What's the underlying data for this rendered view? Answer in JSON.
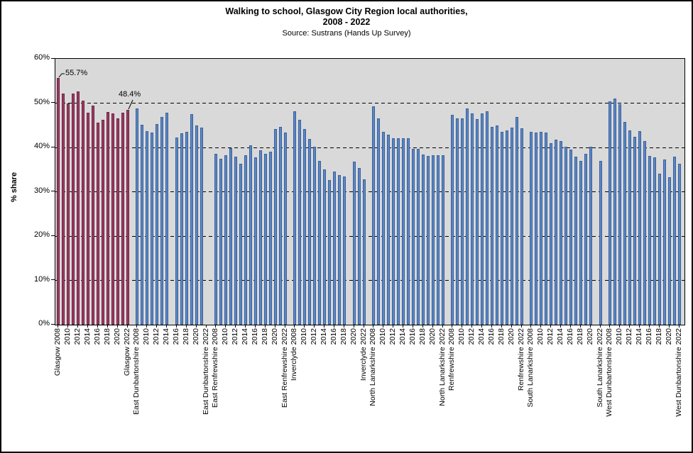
{
  "chart_data": {
    "type": "bar",
    "title": "Walking to school, Glasgow City Region local authorities,",
    "subtitle": "2008 - 2022",
    "source": "Source: Sustrans (Hands Up Survey)",
    "ylabel": "% share",
    "xlabel": "",
    "ylim": [
      0,
      60
    ],
    "yticks": [
      0,
      10,
      20,
      30,
      40,
      50,
      60
    ],
    "ytick_suffix": "%",
    "grid": "horizontal dashed black lines at 10%-50%",
    "legend_position": "none",
    "plot_background": "#D9D9D9",
    "years": [
      2008,
      2009,
      2010,
      2011,
      2012,
      2013,
      2014,
      2015,
      2016,
      2017,
      2018,
      2019,
      2020,
      2021,
      2022
    ],
    "labeled_years": [
      2008,
      2010,
      2012,
      2014,
      2016,
      2018,
      2020,
      2022
    ],
    "series": [
      {
        "name": "Glasgow",
        "highlight": true,
        "values": [
          55.7,
          52.2,
          49.9,
          52.1,
          52.7,
          50.6,
          47.8,
          49.5,
          45.6,
          46.3,
          48.0,
          47.6,
          46.6,
          47.8,
          48.4
        ]
      },
      {
        "name": "East Dunbartonshire",
        "highlight": false,
        "values": [
          48.8,
          45.1,
          43.6,
          43.3,
          45.3,
          46.8,
          47.9,
          null,
          42.3,
          43.2,
          43.5,
          47.5,
          45.0,
          44.5,
          null
        ]
      },
      {
        "name": "East Renfrewshire",
        "highlight": false,
        "values": [
          38.5,
          37.4,
          38.2,
          39.9,
          37.9,
          36.3,
          38.2,
          40.4,
          37.7,
          39.3,
          38.5,
          39.0,
          44.2,
          44.6,
          43.3
        ]
      },
      {
        "name": "Inverclyde",
        "highlight": false,
        "values": [
          48.2,
          46.2,
          44.1,
          41.9,
          40.2,
          37.0,
          35.0,
          32.6,
          34.5,
          33.7,
          33.4,
          null,
          36.8,
          35.3,
          32.8
        ]
      },
      {
        "name": "North Lanarkshire",
        "highlight": false,
        "values": [
          49.2,
          46.6,
          43.5,
          42.9,
          42.1,
          42.1,
          42.1,
          42.0,
          39.7,
          39.7,
          38.4,
          38.1,
          38.3,
          38.3,
          38.2
        ]
      },
      {
        "name": "Renfrewshire",
        "highlight": false,
        "values": [
          47.4,
          46.6,
          46.5,
          48.8,
          47.6,
          46.4,
          47.7,
          48.1,
          44.6,
          44.9,
          43.5,
          43.8,
          44.4,
          46.9,
          44.3
        ]
      },
      {
        "name": "South Lanarkshire",
        "highlight": false,
        "values": [
          43.5,
          43.4,
          43.5,
          43.3,
          40.9,
          41.7,
          41.4,
          40.1,
          39.5,
          37.9,
          36.9,
          38.5,
          40.2,
          null,
          37.0
        ]
      },
      {
        "name": "West Dunbartonshire",
        "highlight": false,
        "values": [
          50.4,
          51.0,
          49.8,
          45.7,
          43.9,
          42.4,
          43.7,
          41.4,
          38.0,
          37.7,
          34.1,
          37.2,
          33.3,
          37.9,
          36.3
        ]
      }
    ],
    "annotations": [
      {
        "text": "55.7%",
        "series": "Glasgow",
        "year": 2008
      },
      {
        "text": "48.4%",
        "series": "Glasgow",
        "year": 2022
      }
    ],
    "colors": {
      "highlight_fill": "#9E3A62",
      "highlight_border": "#6E2343",
      "bar_fill": "#5B87C5",
      "bar_border": "#3A619B",
      "plot_bg": "#D9D9D9",
      "figure_bg": "#FFFFFF",
      "text": "#000000",
      "gridline": "#000000"
    }
  }
}
